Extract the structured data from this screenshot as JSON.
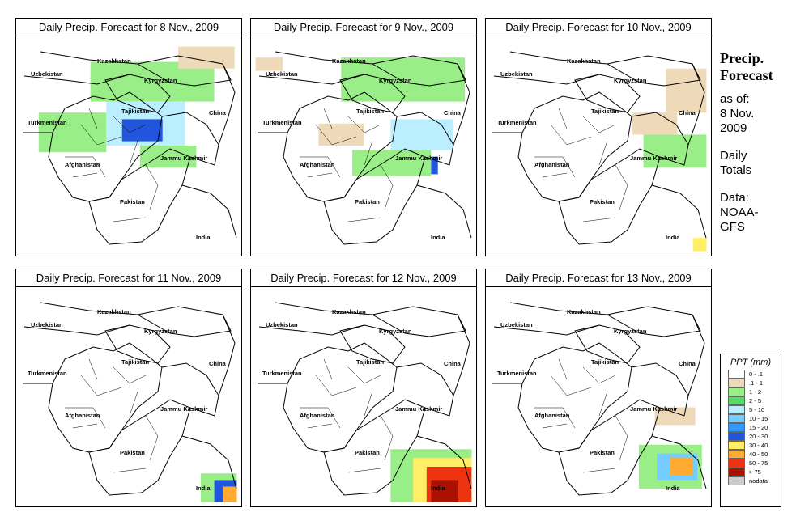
{
  "panels": [
    {
      "title": "Daily Precip. Forecast for  8 Nov., 2009",
      "precip": [
        {
          "rx": 0.1,
          "ry": 0.35,
          "w": 0.3,
          "h": 0.18,
          "cat": "1-2"
        },
        {
          "rx": 0.33,
          "ry": 0.12,
          "w": 0.55,
          "h": 0.18,
          "cat": "1-2"
        },
        {
          "rx": 0.4,
          "ry": 0.3,
          "w": 0.35,
          "h": 0.2,
          "cat": "5-10"
        },
        {
          "rx": 0.47,
          "ry": 0.38,
          "w": 0.18,
          "h": 0.1,
          "cat": "20-30"
        },
        {
          "rx": 0.72,
          "ry": 0.05,
          "w": 0.25,
          "h": 0.1,
          "cat": ".1-1"
        },
        {
          "rx": 0.55,
          "ry": 0.5,
          "w": 0.25,
          "h": 0.1,
          "cat": "1-2"
        }
      ]
    },
    {
      "title": "Daily Precip. Forecast for  9 Nov., 2009",
      "precip": [
        {
          "rx": 0.4,
          "ry": 0.1,
          "w": 0.55,
          "h": 0.2,
          "cat": "1-2"
        },
        {
          "rx": 0.62,
          "ry": 0.38,
          "w": 0.28,
          "h": 0.14,
          "cat": "5-10"
        },
        {
          "rx": 0.68,
          "ry": 0.55,
          "w": 0.15,
          "h": 0.08,
          "cat": "20-30"
        },
        {
          "rx": 0.45,
          "ry": 0.52,
          "w": 0.35,
          "h": 0.12,
          "cat": "1-2"
        },
        {
          "rx": 0.02,
          "ry": 0.1,
          "w": 0.12,
          "h": 0.06,
          "cat": ".1-1"
        },
        {
          "rx": 0.3,
          "ry": 0.4,
          "w": 0.2,
          "h": 0.1,
          "cat": ".1-1"
        }
      ]
    },
    {
      "title": "Daily Precip. Forecast for  10 Nov., 2009",
      "precip": [
        {
          "rx": 0.7,
          "ry": 0.45,
          "w": 0.28,
          "h": 0.15,
          "cat": "1-2"
        },
        {
          "rx": 0.8,
          "ry": 0.15,
          "w": 0.18,
          "h": 0.2,
          "cat": ".1-1"
        },
        {
          "rx": 0.65,
          "ry": 0.35,
          "w": 0.2,
          "h": 0.1,
          "cat": ".1-1"
        },
        {
          "rx": 0.92,
          "ry": 0.92,
          "w": 0.06,
          "h": 0.06,
          "cat": "30-40"
        }
      ]
    },
    {
      "title": "Daily Precip. Forecast for  11 Nov., 2009",
      "precip": [
        {
          "rx": 0.82,
          "ry": 0.85,
          "w": 0.16,
          "h": 0.13,
          "cat": "1-2"
        },
        {
          "rx": 0.88,
          "ry": 0.88,
          "w": 0.1,
          "h": 0.1,
          "cat": "20-30"
        },
        {
          "rx": 0.92,
          "ry": 0.91,
          "w": 0.06,
          "h": 0.07,
          "cat": "40-50"
        }
      ]
    },
    {
      "title": "Daily Precip. Forecast for  12 Nov., 2009",
      "precip": [
        {
          "rx": 0.62,
          "ry": 0.74,
          "w": 0.36,
          "h": 0.24,
          "cat": "1-2"
        },
        {
          "rx": 0.72,
          "ry": 0.78,
          "w": 0.26,
          "h": 0.2,
          "cat": "30-40"
        },
        {
          "rx": 0.78,
          "ry": 0.82,
          "w": 0.2,
          "h": 0.16,
          "cat": "50-75"
        },
        {
          "rx": 0.8,
          "ry": 0.88,
          "w": 0.12,
          "h": 0.1,
          "cat": "> 75"
        }
      ]
    },
    {
      "title": "Daily Precip. Forecast for  13 Nov., 2009",
      "precip": [
        {
          "rx": 0.68,
          "ry": 0.72,
          "w": 0.28,
          "h": 0.2,
          "cat": "1-2"
        },
        {
          "rx": 0.76,
          "ry": 0.76,
          "w": 0.18,
          "h": 0.12,
          "cat": "10-15"
        },
        {
          "rx": 0.82,
          "ry": 0.78,
          "w": 0.1,
          "h": 0.08,
          "cat": "40-50"
        },
        {
          "rx": 0.75,
          "ry": 0.55,
          "w": 0.18,
          "h": 0.08,
          "cat": ".1-1"
        }
      ]
    }
  ],
  "map_labels": {
    "kazakhstan": "Kazakhstan",
    "uzbekistan": "Uzbekistan",
    "kyrgyzstan": "Kyrgyzstan",
    "tajikistan": "Tajikistan",
    "turkmenistan": "Turkmenistan",
    "china": "China",
    "afghanistan": "Afghanistan",
    "jammu_kashmir": "Jammu Kashmir",
    "pakistan": "Pakistan",
    "india": "India"
  },
  "side": {
    "heading_line1": "Precip.",
    "heading_line2": "Forecast",
    "as_of": "as of:",
    "date_line1": "8 Nov.",
    "date_line2": "2009",
    "totals_line1": "Daily",
    "totals_line2": "Totals",
    "data_label": "Data:",
    "source_line1": "NOAA-",
    "source_line2": "GFS"
  },
  "legend": {
    "title": "PPT (mm)",
    "items": [
      {
        "label": "0 - .1",
        "color": "#ffffff"
      },
      {
        "label": ".1 - 1",
        "color": "#eed9b8"
      },
      {
        "label": "1 - 2",
        "color": "#99ee88"
      },
      {
        "label": "2 - 5",
        "color": "#55dd66"
      },
      {
        "label": "5 - 10",
        "color": "#bbeeff"
      },
      {
        "label": "10 - 15",
        "color": "#77ccff"
      },
      {
        "label": "15 - 20",
        "color": "#3399ff"
      },
      {
        "label": "20 - 30",
        "color": "#2255dd"
      },
      {
        "label": "30 - 40",
        "color": "#ffee66"
      },
      {
        "label": "40 - 50",
        "color": "#ffaa33"
      },
      {
        "label": "50 - 75",
        "color": "#ee3311"
      },
      {
        "label": "> 75",
        "color": "#aa1100"
      },
      {
        "label": "nodata",
        "color": "#cccccc"
      }
    ]
  },
  "category_colors": {
    ".1-1": "#eed9b8",
    "1-2": "#99ee88",
    "2-5": "#55dd66",
    "5-10": "#bbeeff",
    "10-15": "#77ccff",
    "15-20": "#3399ff",
    "20-30": "#2255dd",
    "30-40": "#ffee66",
    "40-50": "#ffaa33",
    "50-75": "#ee3311",
    "> 75": "#aa1100"
  }
}
